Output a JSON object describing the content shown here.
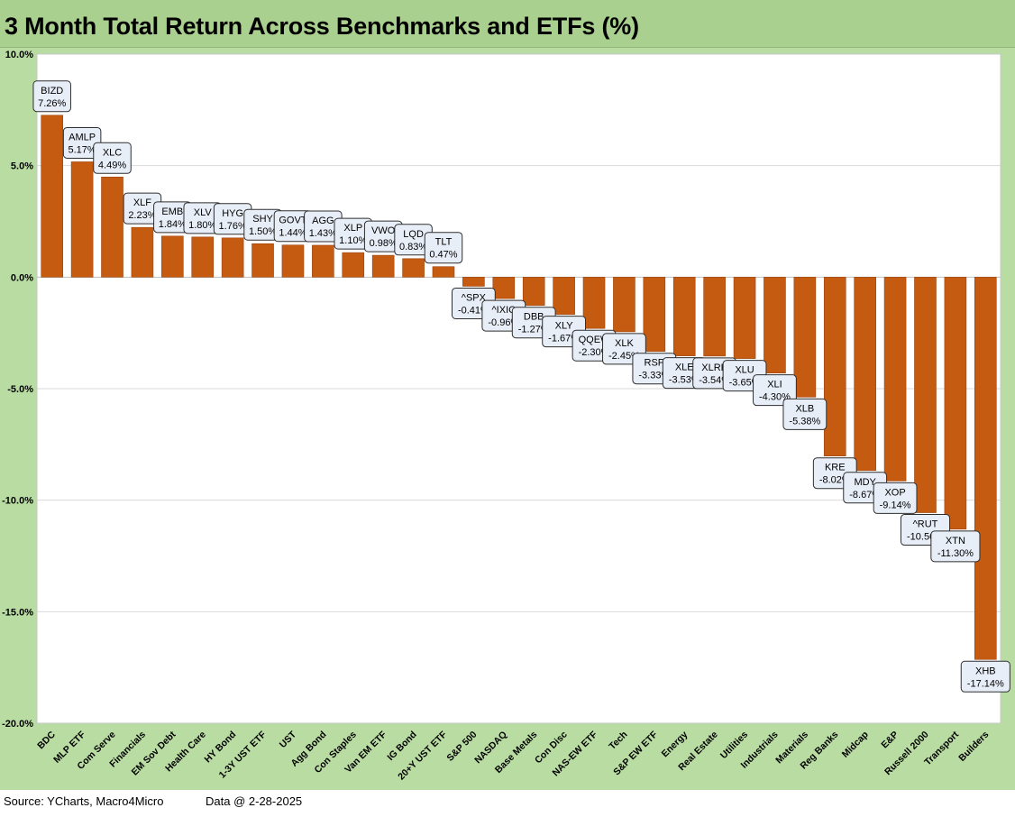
{
  "title": "3 Month Total Return Across Benchmarks and ETFs (%)",
  "footer": {
    "source": "Source: YCharts, Macro4Micro",
    "data_date": "Data @ 2-28-2025"
  },
  "chart_data": {
    "type": "bar",
    "title": "3 Month Total Return Across Benchmarks and ETFs (%)",
    "ylim": [
      -20,
      10
    ],
    "yticks": [
      "10.0%",
      "5.0%",
      "0.0%",
      "-5.0%",
      "-10.0%",
      "-15.0%",
      "-20.0%"
    ],
    "grid": true,
    "bar_color": "#c55a11",
    "categories": [
      "BDC",
      "MLP ETF",
      "Com Serve",
      "Financials",
      "EM Sov Debt",
      "Health Care",
      "HY Bond",
      "1-3Y UST ETF",
      "UST",
      "Agg Bond",
      "Con Staples",
      "Van EM ETF",
      "IG Bond",
      "20+Y UST ETF",
      "S&P 500",
      "NASDAQ",
      "Base Metals",
      "Con Disc",
      "NAS-EW ETF",
      "Tech",
      "S&P EW ETF",
      "Energy",
      "Real Estate",
      "Utilities",
      "Industrials",
      "Materials",
      "Reg Banks",
      "Midcap",
      "E&P",
      "Russell 2000",
      "Transport",
      "Builders"
    ],
    "values": [
      7.26,
      5.17,
      4.49,
      2.23,
      1.84,
      1.8,
      1.76,
      1.5,
      1.44,
      1.43,
      1.1,
      0.98,
      0.83,
      0.47,
      -0.41,
      -0.96,
      -1.27,
      -1.67,
      -2.3,
      -2.45,
      -3.33,
      -3.53,
      -3.54,
      -3.65,
      -4.3,
      -5.38,
      -8.02,
      -8.67,
      -9.14,
      -10.56,
      -11.3,
      -17.14
    ],
    "tickers": [
      "BIZD",
      "AMLP",
      "XLC",
      "XLF",
      "EMB",
      "XLV",
      "HYG",
      "SHY",
      "GOVT",
      "AGG",
      "XLP",
      "VWO",
      "LQD",
      "TLT",
      "^SPX",
      "^IXIC",
      "DBB",
      "XLY",
      "QQEW",
      "XLK",
      "RSP",
      "XLE",
      "XLRE",
      "XLU",
      "XLI",
      "XLB",
      "KRE",
      "MDY",
      "XOP",
      "^RUT",
      "XTN",
      "XHB"
    ],
    "value_labels": [
      "7.26%",
      "5.17%",
      "4.49%",
      "2.23%",
      "1.84%",
      "1.80%",
      "1.76%",
      "1.50%",
      "1.44%",
      "1.43%",
      "1.10%",
      "0.98%",
      "0.83%",
      "0.47%",
      "-0.41%",
      "-0.96%",
      "-1.27%",
      "-1.67%",
      "-2.30%",
      "-2.45%",
      "-3.33%",
      "-3.53%",
      "-3.54%",
      "-3.65%",
      "-4.30%",
      "-5.38%",
      "-8.02%",
      "-8.67%",
      "-9.14%",
      "-10.56%",
      "-11.30%",
      "-17.14%"
    ]
  }
}
